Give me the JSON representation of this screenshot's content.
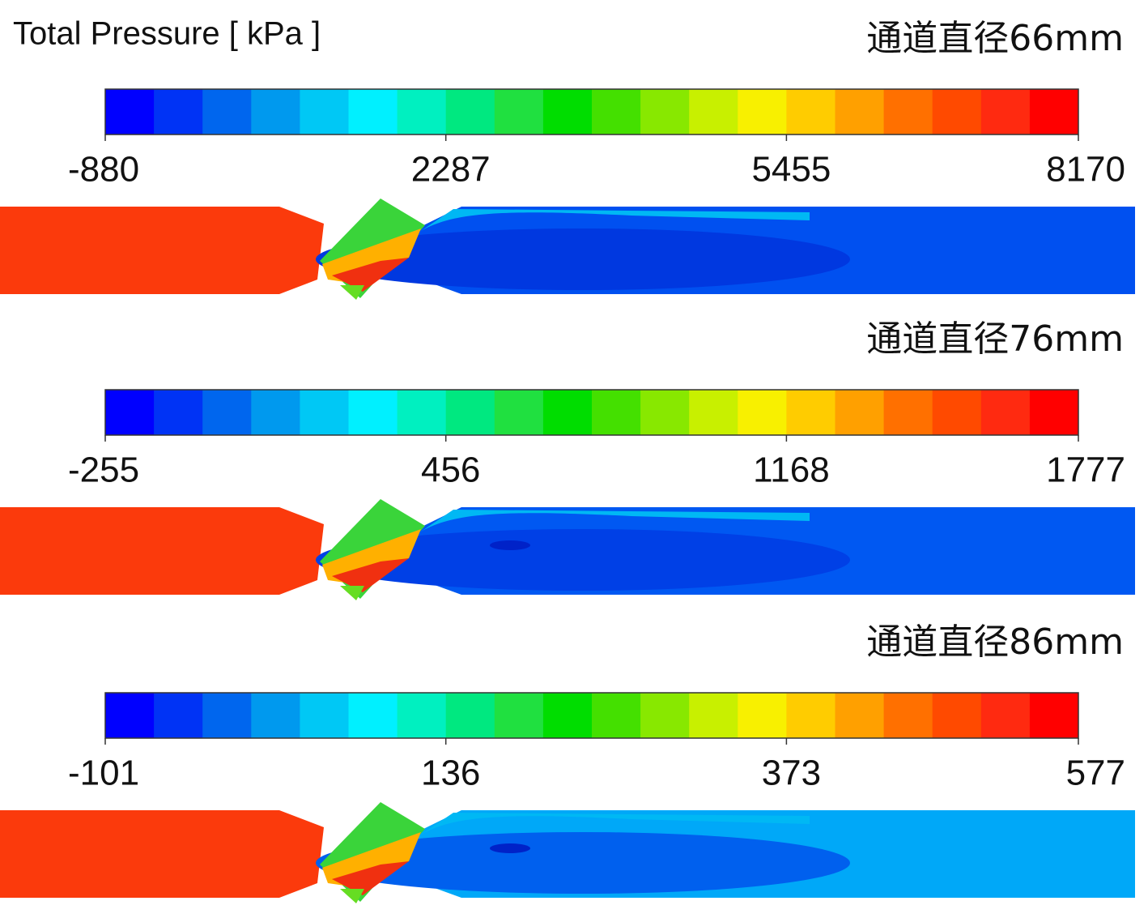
{
  "title": "Total Pressure [ kPa ]",
  "panels": [
    {
      "label": "通道直径66mm",
      "ticks": [
        -880,
        2287,
        5455,
        8170
      ]
    },
    {
      "label": "通道直径76mm",
      "ticks": [
        -255,
        456,
        1168,
        1777
      ]
    },
    {
      "label": "通道直径86mm",
      "ticks": [
        -101,
        136,
        373,
        577
      ]
    }
  ]
}
